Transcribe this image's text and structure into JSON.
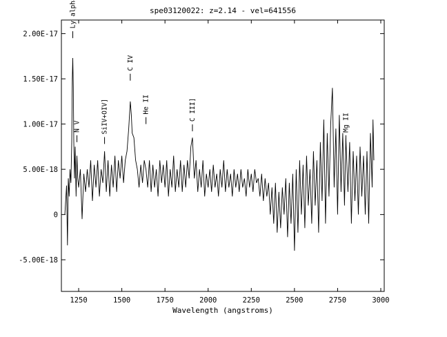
{
  "chart_data": {
    "type": "line",
    "title": "spe03120022: z=2.14 - vel=641556",
    "xlabel": "Wavelength (angstroms)",
    "ylabel": "",
    "xlim": [
      1150,
      3020
    ],
    "ylim": [
      -8.5e-18,
      2.15e-17
    ],
    "x_ticks": [
      1250,
      1500,
      1750,
      2000,
      2250,
      2500,
      2750,
      3000
    ],
    "x_tick_labels": [
      "1250",
      "1500",
      "1750",
      "2000",
      "2250",
      "2500",
      "2750",
      "3000"
    ],
    "y_ticks": [
      -5e-18,
      0,
      5e-18,
      1e-17,
      1.5e-17,
      2e-17
    ],
    "y_tick_labels": [
      "-5.00E-18",
      "0",
      "5.00E-18",
      "1.00E-17",
      "1.50E-17",
      "2.00E-17"
    ],
    "line_labels": [
      {
        "text": "Ly alpha",
        "wavelength": 1216,
        "flux": 1.95e-17
      },
      {
        "text": "N V",
        "wavelength": 1240,
        "flux": 8e-18
      },
      {
        "text": "SiIV+OIV]",
        "wavelength": 1400,
        "flux": 7.8e-18
      },
      {
        "text": "C IV",
        "wavelength": 1549,
        "flux": 1.48e-17
      },
      {
        "text": "He II",
        "wavelength": 1640,
        "flux": 1e-17
      },
      {
        "text": "C III]",
        "wavelength": 1909,
        "flux": 9.2e-18
      },
      {
        "text": "Mg II",
        "wavelength": 2798,
        "flux": 8e-18
      }
    ],
    "series": [
      {
        "values": [
          [
            1170,
            0.0
          ],
          [
            1180,
            3.2e-18
          ],
          [
            1185,
            -3.4e-18
          ],
          [
            1190,
            4e-18
          ],
          [
            1195,
            2e-18
          ],
          [
            1200,
            5e-18
          ],
          [
            1205,
            3.5e-18
          ],
          [
            1210,
            8e-18
          ],
          [
            1213,
            1.5e-17
          ],
          [
            1216,
            1.73e-17
          ],
          [
            1219,
            1.4e-17
          ],
          [
            1222,
            8e-18
          ],
          [
            1226,
            4e-18
          ],
          [
            1230,
            7.5e-18
          ],
          [
            1235,
            2e-18
          ],
          [
            1240,
            6.5e-18
          ],
          [
            1245,
            4e-18
          ],
          [
            1250,
            3e-18
          ],
          [
            1260,
            5e-18
          ],
          [
            1270,
            -5e-19
          ],
          [
            1280,
            4.5e-18
          ],
          [
            1290,
            2.5e-18
          ],
          [
            1300,
            5e-18
          ],
          [
            1310,
            3e-18
          ],
          [
            1320,
            6e-18
          ],
          [
            1330,
            1.5e-18
          ],
          [
            1340,
            5.5e-18
          ],
          [
            1350,
            3e-18
          ],
          [
            1360,
            6e-18
          ],
          [
            1370,
            2e-18
          ],
          [
            1380,
            5e-18
          ],
          [
            1390,
            3.5e-18
          ],
          [
            1400,
            7e-18
          ],
          [
            1410,
            2.5e-18
          ],
          [
            1420,
            6e-18
          ],
          [
            1430,
            2e-18
          ],
          [
            1440,
            5.5e-18
          ],
          [
            1450,
            3e-18
          ],
          [
            1460,
            6.5e-18
          ],
          [
            1470,
            2.5e-18
          ],
          [
            1480,
            6e-18
          ],
          [
            1490,
            4e-18
          ],
          [
            1500,
            6.5e-18
          ],
          [
            1510,
            3.5e-18
          ],
          [
            1520,
            6e-18
          ],
          [
            1530,
            7e-18
          ],
          [
            1540,
            9.5e-18
          ],
          [
            1549,
            1.25e-17
          ],
          [
            1555,
            1.1e-17
          ],
          [
            1560,
            9e-18
          ],
          [
            1570,
            8.5e-18
          ],
          [
            1580,
            6e-18
          ],
          [
            1590,
            5e-18
          ],
          [
            1600,
            3e-18
          ],
          [
            1610,
            5.5e-18
          ],
          [
            1620,
            3.5e-18
          ],
          [
            1630,
            6e-18
          ],
          [
            1640,
            5e-18
          ],
          [
            1650,
            3e-18
          ],
          [
            1660,
            6e-18
          ],
          [
            1670,
            2.5e-18
          ],
          [
            1680,
            5.5e-18
          ],
          [
            1690,
            3e-18
          ],
          [
            1700,
            5e-18
          ],
          [
            1710,
            2e-18
          ],
          [
            1720,
            6e-18
          ],
          [
            1730,
            3.5e-18
          ],
          [
            1740,
            5.5e-18
          ],
          [
            1750,
            3e-18
          ],
          [
            1760,
            6e-18
          ],
          [
            1770,
            2e-18
          ],
          [
            1780,
            5e-18
          ],
          [
            1790,
            3e-18
          ],
          [
            1800,
            6.5e-18
          ],
          [
            1810,
            2.5e-18
          ],
          [
            1820,
            5e-18
          ],
          [
            1830,
            3e-18
          ],
          [
            1840,
            6e-18
          ],
          [
            1850,
            2.5e-18
          ],
          [
            1860,
            5.5e-18
          ],
          [
            1870,
            3e-18
          ],
          [
            1880,
            6e-18
          ],
          [
            1890,
            4e-18
          ],
          [
            1900,
            7.5e-18
          ],
          [
            1909,
            8.5e-18
          ],
          [
            1920,
            4e-18
          ],
          [
            1930,
            6e-18
          ],
          [
            1940,
            2.5e-18
          ],
          [
            1950,
            5e-18
          ],
          [
            1960,
            3e-18
          ],
          [
            1970,
            6e-18
          ],
          [
            1980,
            2e-18
          ],
          [
            1990,
            4.5e-18
          ],
          [
            2000,
            3e-18
          ],
          [
            2010,
            5e-18
          ],
          [
            2020,
            2.5e-18
          ],
          [
            2030,
            5.5e-18
          ],
          [
            2040,
            3e-18
          ],
          [
            2050,
            4.5e-18
          ],
          [
            2060,
            2e-18
          ],
          [
            2070,
            5e-18
          ],
          [
            2080,
            3e-18
          ],
          [
            2090,
            6e-18
          ],
          [
            2100,
            2.5e-18
          ],
          [
            2110,
            5e-18
          ],
          [
            2120,
            3e-18
          ],
          [
            2130,
            4.5e-18
          ],
          [
            2140,
            2e-18
          ],
          [
            2150,
            5e-18
          ],
          [
            2160,
            3e-18
          ],
          [
            2170,
            4.5e-18
          ],
          [
            2180,
            2.5e-18
          ],
          [
            2190,
            5e-18
          ],
          [
            2200,
            3e-18
          ],
          [
            2210,
            4e-18
          ],
          [
            2220,
            2e-18
          ],
          [
            2230,
            5e-18
          ],
          [
            2240,
            3e-18
          ],
          [
            2250,
            4.5e-18
          ],
          [
            2260,
            2.5e-18
          ],
          [
            2270,
            5e-18
          ],
          [
            2280,
            3.5e-18
          ],
          [
            2290,
            4e-18
          ],
          [
            2300,
            2e-18
          ],
          [
            2310,
            4.5e-18
          ],
          [
            2320,
            1.5e-18
          ],
          [
            2330,
            4e-18
          ],
          [
            2340,
            2e-18
          ],
          [
            2350,
            3.5e-18
          ],
          [
            2360,
            0.0
          ],
          [
            2370,
            3e-18
          ],
          [
            2380,
            -1e-18
          ],
          [
            2390,
            3.5e-18
          ],
          [
            2400,
            -2e-18
          ],
          [
            2410,
            2.5e-18
          ],
          [
            2420,
            -1.5e-18
          ],
          [
            2430,
            3e-18
          ],
          [
            2440,
            0.0
          ],
          [
            2450,
            4e-18
          ],
          [
            2460,
            -2.5e-18
          ],
          [
            2470,
            3.5e-18
          ],
          [
            2480,
            -1e-18
          ],
          [
            2490,
            4.5e-18
          ],
          [
            2500,
            -4e-18
          ],
          [
            2510,
            5e-18
          ],
          [
            2520,
            -2e-18
          ],
          [
            2530,
            6e-18
          ],
          [
            2540,
            0.0
          ],
          [
            2550,
            5.5e-18
          ],
          [
            2560,
            -1.5e-18
          ],
          [
            2570,
            6.5e-18
          ],
          [
            2580,
            1e-18
          ],
          [
            2590,
            5e-18
          ],
          [
            2600,
            -1e-18
          ],
          [
            2610,
            7e-18
          ],
          [
            2620,
            1e-18
          ],
          [
            2630,
            6e-18
          ],
          [
            2640,
            -2e-18
          ],
          [
            2650,
            8e-18
          ],
          [
            2660,
            1.5e-18
          ],
          [
            2670,
            1.05e-17
          ],
          [
            2680,
            -1e-18
          ],
          [
            2690,
            9e-18
          ],
          [
            2700,
            2e-18
          ],
          [
            2710,
            1e-17
          ],
          [
            2720,
            1.4e-17
          ],
          [
            2730,
            3e-18
          ],
          [
            2740,
            9.5e-18
          ],
          [
            2750,
            0.0
          ],
          [
            2760,
            1.1e-17
          ],
          [
            2770,
            2.5e-18
          ],
          [
            2780,
            9e-18
          ],
          [
            2790,
            1e-18
          ],
          [
            2798,
            8.5e-18
          ],
          [
            2810,
            2.5e-18
          ],
          [
            2820,
            8e-18
          ],
          [
            2830,
            -1e-18
          ],
          [
            2840,
            7e-18
          ],
          [
            2850,
            1.5e-18
          ],
          [
            2860,
            6.5e-18
          ],
          [
            2870,
            0.0
          ],
          [
            2880,
            7.5e-18
          ],
          [
            2890,
            2e-18
          ],
          [
            2900,
            6.5e-18
          ],
          [
            2910,
            0.0
          ],
          [
            2920,
            7e-18
          ],
          [
            2930,
            -1e-18
          ],
          [
            2940,
            9e-18
          ],
          [
            2950,
            3e-18
          ],
          [
            2955,
            1.05e-17
          ],
          [
            2960,
            6e-18
          ]
        ]
      }
    ]
  }
}
